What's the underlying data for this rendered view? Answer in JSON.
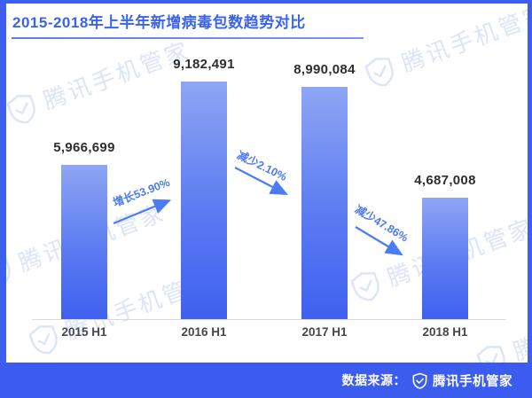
{
  "title": {
    "text": "2015-2018年上半年新增病毒包数趋势对比"
  },
  "chart_data": {
    "type": "bar",
    "title": "2015-2018年上半年新增病毒包数趋势对比",
    "categories": [
      "2015 H1",
      "2016 H1",
      "2017 H1",
      "2018 H1"
    ],
    "values": [
      5966699,
      9182491,
      8990084,
      4687008
    ],
    "value_labels": [
      "5,966,699",
      "9,182,491",
      "8,990,084",
      "4,687,008"
    ],
    "annotations": [
      {
        "text": "增长53.90%",
        "direction": "up"
      },
      {
        "text": "减少2.10%",
        "direction": "down"
      },
      {
        "text": "减少47.86%",
        "direction": "down"
      }
    ],
    "ylim": [
      0,
      9182491
    ],
    "grid": false,
    "legend": false,
    "bar_gradient_top": "#8EA6F4",
    "bar_gradient_bottom": "#3F60F0"
  },
  "watermark": {
    "text": "腾讯手机管家"
  },
  "footer": {
    "source_label": "数据来源：",
    "brand": "腾讯手机管家"
  },
  "colors": {
    "border": "#3D5FF0",
    "title": "#3B63E8",
    "arrow": "#4B7BF5",
    "footer_bg": "#3C5CF0",
    "axis": "#D9D9D9"
  }
}
